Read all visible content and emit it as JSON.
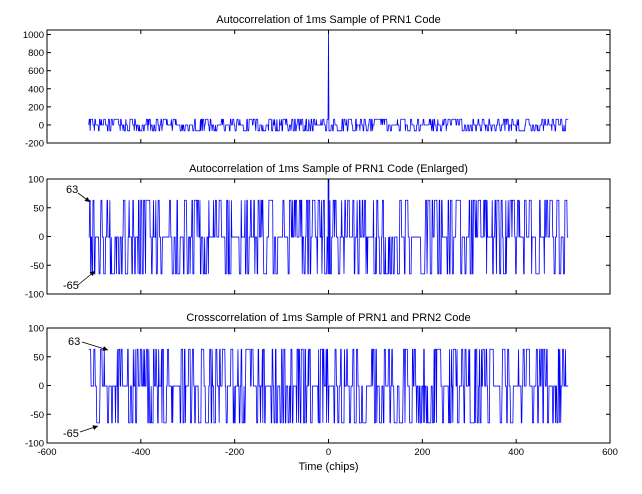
{
  "chart_data": [
    {
      "type": "line",
      "title": "Autocorrelation of 1ms Sample of PRN1 Code",
      "xlabel": "",
      "ylabel": "",
      "xlim": [
        -600,
        600
      ],
      "ylim": [
        -200,
        1050
      ],
      "xticks": [
        "-600",
        "-400",
        "-200",
        "0",
        "200",
        "400",
        "600"
      ],
      "yticks": [
        "-200",
        "0",
        "200",
        "400",
        "600",
        "800",
        "1000"
      ],
      "x_range": [
        -511,
        511
      ],
      "levels": [
        -65,
        -1,
        63
      ],
      "peak": {
        "x": 0,
        "y": 1023
      },
      "color": "#0000ff",
      "annotations": []
    },
    {
      "type": "line",
      "title": "Autocorrelation of 1ms Sample of PRN1 Code (Enlarged)",
      "xlabel": "",
      "ylabel": "",
      "xlim": [
        -600,
        600
      ],
      "ylim": [
        -100,
        100
      ],
      "xticks": [
        "-600",
        "-400",
        "-200",
        "0",
        "200",
        "400",
        "600"
      ],
      "yticks": [
        "-100",
        "-50",
        "0",
        "50",
        "100"
      ],
      "x_range": [
        -511,
        511
      ],
      "levels": [
        -65,
        -1,
        63
      ],
      "peak": {
        "x": 0,
        "y": 1023
      },
      "color": "#0000ff",
      "annotations": [
        {
          "text": "63",
          "x": 63
        },
        {
          "text": "-65",
          "x": -65
        }
      ]
    },
    {
      "type": "line",
      "title": "Crosscorrelation of 1ms Sample of PRN1 and PRN2 Code",
      "xlabel": "Time (chips)",
      "ylabel": "",
      "xlim": [
        -600,
        600
      ],
      "ylim": [
        -100,
        100
      ],
      "xticks": [
        "-600",
        "-400",
        "-200",
        "0",
        "200",
        "400",
        "600"
      ],
      "yticks": [
        "-100",
        "-50",
        "0",
        "50",
        "100"
      ],
      "x_range": [
        -511,
        511
      ],
      "levels": [
        -65,
        -1,
        63
      ],
      "peak": null,
      "color": "#0000ff",
      "annotations": [
        {
          "text": "63",
          "x": 63
        },
        {
          "text": "-65",
          "x": -65
        }
      ]
    }
  ]
}
